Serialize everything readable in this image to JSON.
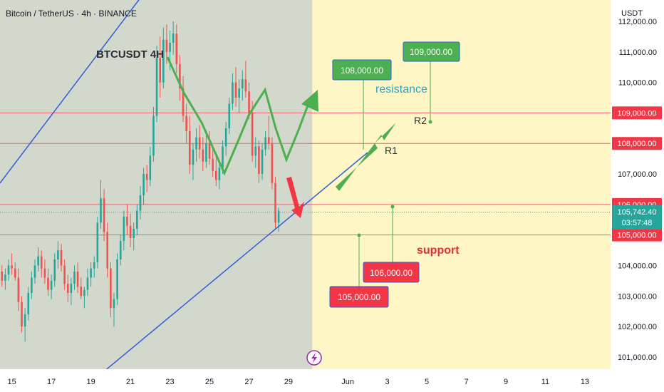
{
  "header": {
    "title": "Bitcoin / TetherUS · 4h · BINANCE"
  },
  "currency": "USDT",
  "watermark": "BTCUSDT 4H",
  "colors": {
    "bg_main": "#fef6c5",
    "channel_fill": "#d3d8cc",
    "channel_line": "#2f5fd6",
    "level_line": "#f06070",
    "green_arrow": "#4caf50",
    "red_arrow": "#f23645",
    "candle_up": "#26a69a",
    "candle_down": "#ef5350",
    "badge_red": "#f23645",
    "badge_green": "#26a69a",
    "callout_green": "#4caf50",
    "callout_red": "#f23645",
    "resistance_text": "#26a6c9",
    "support_text": "#e03040"
  },
  "annotations": {
    "resistance": "resistance",
    "support": "support",
    "r1": "R1",
    "r2": "R2"
  },
  "callouts": [
    {
      "label": "108,000.00",
      "kind": "green"
    },
    {
      "label": "109,000.00",
      "kind": "green"
    },
    {
      "label": "106,000.00",
      "kind": "red"
    },
    {
      "label": "105,000.00",
      "kind": "red"
    }
  ],
  "price_badges": [
    {
      "label": "109,000.00",
      "value": 109000,
      "style": "outline"
    },
    {
      "label": "108,000.00",
      "value": 108000,
      "style": "outline"
    },
    {
      "label": "106,000.00",
      "value": 106000,
      "style": "outline"
    },
    {
      "label": "105,000.00",
      "value": 105000,
      "style": "outline"
    }
  ],
  "current_price": {
    "label": "105,742.40",
    "countdown": "03:57:48",
    "value": 105742.4
  },
  "icon": "lightning-icon",
  "chart_data": {
    "type": "candlestick",
    "title": "Bitcoin / TetherUS · 4h · BINANCE",
    "ylabel": "USDT",
    "ylim": [
      100600,
      112700
    ],
    "y_ticks": [
      101000,
      102000,
      103000,
      104000,
      105000,
      106000,
      107000,
      108000,
      109000,
      110000,
      111000,
      112000
    ],
    "y_tick_labels": [
      "101,000.00",
      "102,000.00",
      "103,000.00",
      "104,000.00",
      "105,000.00",
      "106,000.00",
      "107,000.00",
      "108,000.00",
      "109,000.00",
      "110,000.00",
      "111,000.00",
      "112,000.00"
    ],
    "x_tick_labels": [
      "15",
      "17",
      "19",
      "21",
      "23",
      "25",
      "27",
      "29",
      "Jun",
      "3",
      "5",
      "7",
      "9",
      "11",
      "13"
    ],
    "x_tick_days": [
      15,
      17,
      19,
      21,
      23,
      25,
      27,
      29,
      32,
      34,
      36,
      38,
      40,
      42,
      44
    ],
    "xlim_days": [
      14.4,
      45.3
    ],
    "horizontal_levels": [
      109000,
      108000,
      106000,
      105000
    ],
    "candles_start_day": 14.0,
    "candle_step_days": 0.1667,
    "candles": [
      [
        104.0,
        104.3,
        103.5,
        103.9
      ],
      [
        103.9,
        104.2,
        103.6,
        104.0
      ],
      [
        104.0,
        104.5,
        103.7,
        103.8
      ],
      [
        103.8,
        104.0,
        103.3,
        103.5
      ],
      [
        103.5,
        103.9,
        103.2,
        103.7
      ],
      [
        103.7,
        104.2,
        103.5,
        104.0
      ],
      [
        104.0,
        104.4,
        103.7,
        103.9
      ],
      [
        103.9,
        104.1,
        103.5,
        103.6
      ],
      [
        103.6,
        103.9,
        102.5,
        102.8
      ],
      [
        102.8,
        103.0,
        101.8,
        102.0
      ],
      [
        102.0,
        102.6,
        101.5,
        102.4
      ],
      [
        102.4,
        103.3,
        102.2,
        103.1
      ],
      [
        103.1,
        103.8,
        102.9,
        103.6
      ],
      [
        103.6,
        104.2,
        103.4,
        104.0
      ],
      [
        104.0,
        104.6,
        103.8,
        104.3
      ],
      [
        104.3,
        104.5,
        103.6,
        103.9
      ],
      [
        103.9,
        104.2,
        103.4,
        103.6
      ],
      [
        103.6,
        103.9,
        103.0,
        103.2
      ],
      [
        103.2,
        103.7,
        102.9,
        103.5
      ],
      [
        103.5,
        104.4,
        103.3,
        104.2
      ],
      [
        104.2,
        104.8,
        103.9,
        104.5
      ],
      [
        104.5,
        104.7,
        103.8,
        104.0
      ],
      [
        104.0,
        104.2,
        103.2,
        103.4
      ],
      [
        103.4,
        103.7,
        102.8,
        103.1
      ],
      [
        103.1,
        103.6,
        102.7,
        103.4
      ],
      [
        103.4,
        104.0,
        103.2,
        103.8
      ],
      [
        103.8,
        104.1,
        103.1,
        103.3
      ],
      [
        103.3,
        103.6,
        102.9,
        103.0
      ],
      [
        103.0,
        103.3,
        102.6,
        103.2
      ],
      [
        103.2,
        103.9,
        103.0,
        103.6
      ],
      [
        103.6,
        104.1,
        103.3,
        103.9
      ],
      [
        103.9,
        104.3,
        103.6,
        104.1
      ],
      [
        104.1,
        105.6,
        103.9,
        105.4
      ],
      [
        105.4,
        106.8,
        105.2,
        106.2
      ],
      [
        106.2,
        106.5,
        104.8,
        105.1
      ],
      [
        105.1,
        105.4,
        103.6,
        103.9
      ],
      [
        103.9,
        104.1,
        102.3,
        102.6
      ],
      [
        102.6,
        103.1,
        102.0,
        102.9
      ],
      [
        102.9,
        104.4,
        102.7,
        104.2
      ],
      [
        104.2,
        105.0,
        104.0,
        104.8
      ],
      [
        104.8,
        105.8,
        104.5,
        105.6
      ],
      [
        105.6,
        106.0,
        105.0,
        105.3
      ],
      [
        105.3,
        105.7,
        104.6,
        104.9
      ],
      [
        104.9,
        105.4,
        104.5,
        105.2
      ],
      [
        105.2,
        106.0,
        105.0,
        105.8
      ],
      [
        105.8,
        106.6,
        105.5,
        106.3
      ],
      [
        106.3,
        107.2,
        106.0,
        107.0
      ],
      [
        107.0,
        107.3,
        106.4,
        106.8
      ],
      [
        106.8,
        107.9,
        106.6,
        107.6
      ],
      [
        107.6,
        109.2,
        107.4,
        108.9
      ],
      [
        108.9,
        111.2,
        108.7,
        110.8
      ],
      [
        110.8,
        111.5,
        109.5,
        110.0
      ],
      [
        110.0,
        111.8,
        109.8,
        111.4
      ],
      [
        111.4,
        111.9,
        110.6,
        111.0
      ],
      [
        111.0,
        111.7,
        110.4,
        111.3
      ],
      [
        111.3,
        112.0,
        110.9,
        111.6
      ],
      [
        111.6,
        111.9,
        110.3,
        110.6
      ],
      [
        110.6,
        110.9,
        109.4,
        109.8
      ],
      [
        109.8,
        110.2,
        108.7,
        108.9
      ],
      [
        108.9,
        109.3,
        108.0,
        108.4
      ],
      [
        108.4,
        108.9,
        107.0,
        107.3
      ],
      [
        107.3,
        108.0,
        106.8,
        107.8
      ],
      [
        107.8,
        108.5,
        107.4,
        108.2
      ],
      [
        108.2,
        108.6,
        107.5,
        107.8
      ],
      [
        107.8,
        108.2,
        107.1,
        107.4
      ],
      [
        107.4,
        108.3,
        107.2,
        108.0
      ],
      [
        108.0,
        108.4,
        107.3,
        107.5
      ],
      [
        107.5,
        107.9,
        106.9,
        107.1
      ],
      [
        107.1,
        107.6,
        106.6,
        106.8
      ],
      [
        106.8,
        107.4,
        106.5,
        107.2
      ],
      [
        107.2,
        108.1,
        107.0,
        107.9
      ],
      [
        107.9,
        108.7,
        107.6,
        108.5
      ],
      [
        108.5,
        109.5,
        108.3,
        109.3
      ],
      [
        109.3,
        110.3,
        109.1,
        110.0
      ],
      [
        110.0,
        110.5,
        109.2,
        109.5
      ],
      [
        109.5,
        110.1,
        109.0,
        109.8
      ],
      [
        109.8,
        110.4,
        109.4,
        110.1
      ],
      [
        110.1,
        110.7,
        109.5,
        109.7
      ],
      [
        109.7,
        110.0,
        108.8,
        109.0
      ],
      [
        109.0,
        109.4,
        107.4,
        107.6
      ],
      [
        107.6,
        108.2,
        107.2,
        107.9
      ],
      [
        107.9,
        108.1,
        106.7,
        107.0
      ],
      [
        107.0,
        108.0,
        106.8,
        107.8
      ],
      [
        107.8,
        108.4,
        107.6,
        108.2
      ],
      [
        108.2,
        108.9,
        107.8,
        108.0
      ],
      [
        108.0,
        108.2,
        106.5,
        106.7
      ],
      [
        106.7,
        106.9,
        105.2,
        105.4
      ],
      [
        105.4,
        105.9,
        105.1,
        105.8
      ]
    ],
    "channel": {
      "upper": [
        [
          14.4,
          106.7
        ],
        [
          24.0,
          114.9
        ]
      ],
      "lower": [
        [
          19.8,
          100.6
        ],
        [
          33.0,
          107.7
        ]
      ]
    },
    "shaded_region_days": [
      14.4,
      30.2
    ]
  }
}
